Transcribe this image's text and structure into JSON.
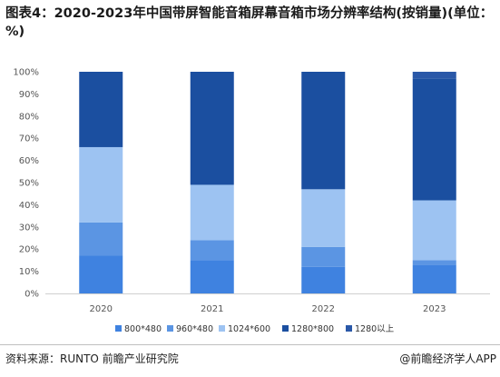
{
  "title": "图表4：2020-2023年中国带屏智能音箱屏幕音箱市场分辨率结构(按销量)(单位：%)",
  "source": "资料来源：RUNTO 前瞻产业研究院",
  "brand": "@前瞻经济学人APP",
  "chart_data": {
    "type": "bar",
    "stacked": true,
    "categories": [
      "2020",
      "2021",
      "2022",
      "2023"
    ],
    "series": [
      {
        "name": "800*480",
        "values": [
          17,
          15,
          12,
          13
        ],
        "color": "#3f82e0"
      },
      {
        "name": "960*480",
        "values": [
          15,
          9,
          9,
          2
        ],
        "color": "#5b95e3"
      },
      {
        "name": "1024*600",
        "values": [
          34,
          25,
          26,
          27
        ],
        "color": "#9dc3f2"
      },
      {
        "name": "1280*800",
        "values": [
          34,
          51,
          53,
          55
        ],
        "color": "#1b4fa0"
      },
      {
        "name": "1280以上",
        "values": [
          0,
          0,
          0,
          3
        ],
        "color": "#2a58a8"
      }
    ],
    "ylim": [
      0,
      100
    ],
    "yticks": [
      "0%",
      "10%",
      "20%",
      "30%",
      "40%",
      "50%",
      "60%",
      "70%",
      "80%",
      "90%",
      "100%"
    ],
    "legend_position": "bottom",
    "grid": false
  }
}
